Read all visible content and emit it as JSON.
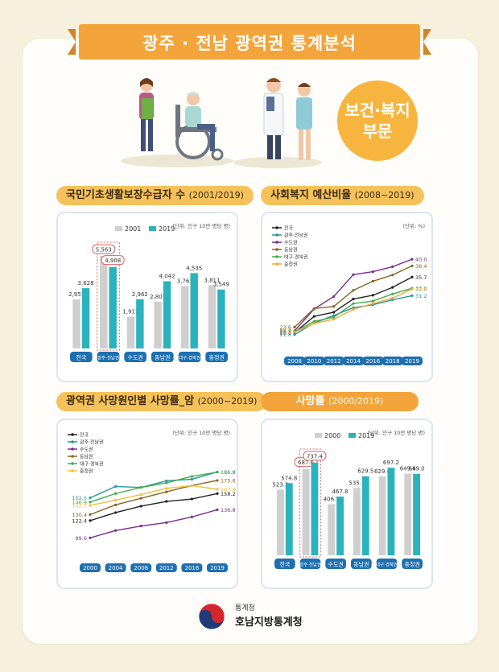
{
  "title": "광주 · 전남 광역권 통계분석",
  "badge": {
    "line1": "보건·복지",
    "line2": "부문"
  },
  "sections": {
    "welfare": {
      "title": "국민기초생활보장수급자 수",
      "sub": "(2001/2019)",
      "unit": "(단위: 인구 10만 명당 명)"
    },
    "budget": {
      "title": "사회복지 예산비율",
      "sub": "(2008~2019)",
      "unit": "(단위: %)"
    },
    "cancer": {
      "title": "광역권 사망원인별 사망률_암",
      "sub": "(2000~2019)",
      "unit": "(단위: 인구 10만 명당 명)"
    },
    "death": {
      "title": "사망률",
      "sub": "(2000/2019)",
      "unit": "(단위: 인구 10만 명당 명)"
    }
  },
  "footer": {
    "small": "통계청",
    "big": "호남지방통계청"
  },
  "chart_data": [
    {
      "type": "bar",
      "categories": [
        "전국",
        "광주·전남권",
        "수도권",
        "동남권",
        "대구·경북권",
        "충청권"
      ],
      "series": [
        {
          "name": "2001",
          "values": [
            2957,
            5563,
            1911,
            2807,
            3761,
            3811
          ],
          "color": "#cfcfcf"
        },
        {
          "name": "2019",
          "values": [
            3628,
            4908,
            2962,
            4042,
            4535,
            3549
          ],
          "color": "#2bb3bd"
        }
      ],
      "labels": [
        [
          "2,957",
          "5,563",
          "1,911",
          "2,807",
          "3,761",
          "3,811"
        ],
        [
          "3,628",
          "4,908",
          "2,962",
          "4,042",
          "4,535",
          "3,549"
        ]
      ],
      "ylim": [
        0,
        6200
      ],
      "highlight_index": 1
    },
    {
      "type": "line",
      "x": [
        "2008",
        "2010",
        "2012",
        "2014",
        "2016",
        "2018",
        "2019"
      ],
      "series": [
        {
          "name": "전국",
          "values": [
            22.3,
            26.2,
            27.2,
            30.4,
            31.3,
            33.2,
            35.7
          ],
          "color": "#222222"
        },
        {
          "name": "광주·전남권",
          "values": [
            21.8,
            24.6,
            26.4,
            28.3,
            29.0,
            30.2,
            31.2
          ],
          "color": "#2a93a8"
        },
        {
          "name": "수도권",
          "values": [
            22.7,
            28.0,
            31.0,
            36.3,
            37.0,
            38.2,
            40.0
          ],
          "color": "#7b2d8e"
        },
        {
          "name": "동남권",
          "values": [
            23.6,
            28.1,
            28.6,
            32.5,
            34.7,
            36.2,
            38.4
          ],
          "color": "#8a6523"
        },
        {
          "name": "대구·경북권",
          "values": [
            22.5,
            25.0,
            26.0,
            29.3,
            29.9,
            31.6,
            33.0
          ],
          "color": "#3fae49"
        },
        {
          "name": "충청권",
          "values": [
            22.4,
            24.5,
            25.5,
            27.9,
            29.3,
            30.6,
            32.8
          ],
          "color": "#f2a63a"
        }
      ],
      "start_labels": [
        "22.3",
        "21.8",
        "22.7",
        "23.6",
        "22.5",
        "22.4"
      ],
      "end_labels": [
        "35.7",
        "31.2",
        "40.0",
        "38.4",
        "33.0",
        "32.8"
      ],
      "ylim": [
        20,
        41
      ]
    },
    {
      "type": "line",
      "x": [
        "2000",
        "2004",
        "2008",
        "2012",
        "2016",
        "2019"
      ],
      "series": [
        {
          "name": "전국",
          "values": [
            122.4,
            133.0,
            141.5,
            147.8,
            151.0,
            158.2
          ],
          "color": "#222222"
        },
        {
          "name": "광주·전남권",
          "values": [
            152.5,
            167.6,
            166.3,
            175.0,
            177.1,
            186.8
          ],
          "color": "#2a93a8"
        },
        {
          "name": "수도권",
          "values": [
            99.6,
            109.3,
            115.2,
            119.8,
            127.2,
            136.8
          ],
          "color": "#7b2d8e"
        },
        {
          "name": "동남권",
          "values": [
            130.4,
            143.2,
            151.9,
            160.5,
            168.8,
            175.6
          ],
          "color": "#8a6523"
        },
        {
          "name": "대구·경북권",
          "values": [
            146.9,
            158.2,
            166.3,
            172.4,
            180.9,
            186.5
          ],
          "color": "#3fae49"
        },
        {
          "name": "충청권",
          "values": [
            142.5,
            149.5,
            156.8,
            165.0,
            168.8,
            163.8
          ],
          "color": "#f2c13a"
        }
      ],
      "start_labels": [
        "122.4",
        "152.5",
        "99.6",
        "130.4",
        "146.9",
        "142.5"
      ],
      "end_labels": [
        "158.2",
        "186.8",
        "136.8",
        "175.6",
        "186.5",
        "163.8"
      ],
      "ylim": [
        85,
        200
      ]
    },
    {
      "type": "bar",
      "categories": [
        "전국",
        "광주·전남권",
        "수도권",
        "동남권",
        "대구·경북권",
        "충청권"
      ],
      "series": [
        {
          "name": "2000",
          "values": [
            523.3,
            687.6,
            406.7,
            535.7,
            629.4,
            649.6
          ],
          "color": "#cfcfcf"
        },
        {
          "name": "2019",
          "values": [
            574.8,
            737.4,
            467.8,
            629.5,
            697.2,
            649.0
          ],
          "color": "#2bb3bd"
        }
      ],
      "labels": [
        [
          "523.3",
          "687.6",
          "406.7",
          "535.7",
          "629.4",
          "649.6"
        ],
        [
          "574.8",
          "737.4",
          "467.8",
          "629.5",
          "697.2",
          "649.0"
        ]
      ],
      "ylim": [
        0,
        820
      ],
      "highlight_index": 1
    }
  ]
}
